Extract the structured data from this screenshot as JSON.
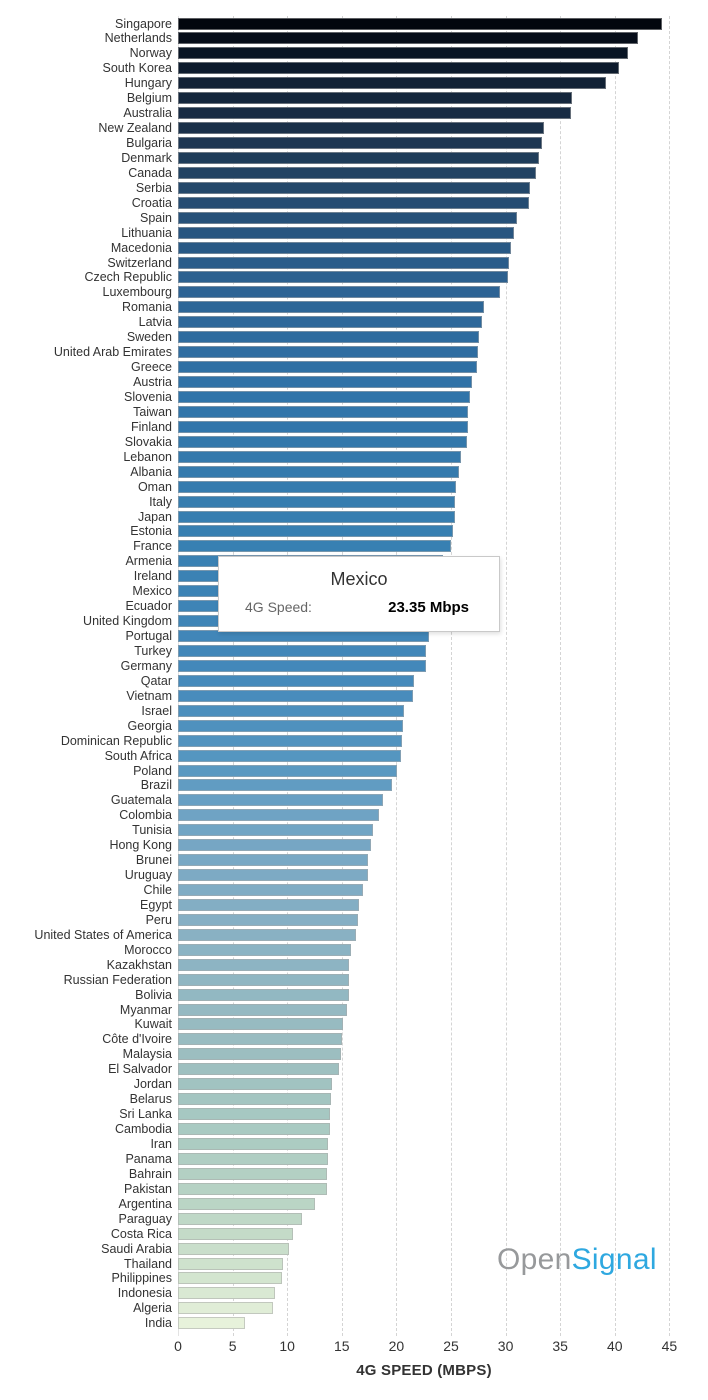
{
  "chart_data": {
    "type": "bar",
    "orientation": "horizontal",
    "title": "",
    "xlabel": "4G SPEED (MBPS)",
    "ylabel": "",
    "xlim": [
      0,
      45
    ],
    "x_ticks": [
      0,
      5,
      10,
      15,
      20,
      25,
      30,
      35,
      40,
      45
    ],
    "grid": "vertical-dashed",
    "categories": [
      "Singapore",
      "Netherlands",
      "Norway",
      "South Korea",
      "Hungary",
      "Belgium",
      "Australia",
      "New Zealand",
      "Bulgaria",
      "Denmark",
      "Canada",
      "Serbia",
      "Croatia",
      "Spain",
      "Lithuania",
      "Macedonia",
      "Switzerland",
      "Czech Republic",
      "Luxembourg",
      "Romania",
      "Latvia",
      "Sweden",
      "United Arab Emirates",
      "Greece",
      "Austria",
      "Slovenia",
      "Taiwan",
      "Finland",
      "Slovakia",
      "Lebanon",
      "Albania",
      "Oman",
      "Italy",
      "Japan",
      "Estonia",
      "France",
      "Armenia",
      "Ireland",
      "Mexico",
      "Ecuador",
      "United Kingdom",
      "Portugal",
      "Turkey",
      "Germany",
      "Qatar",
      "Vietnam",
      "Israel",
      "Georgia",
      "Dominican Republic",
      "South Africa",
      "Poland",
      "Brazil",
      "Guatemala",
      "Colombia",
      "Tunisia",
      "Hong Kong",
      "Brunei",
      "Uruguay",
      "Chile",
      "Egypt",
      "Peru",
      "United States of America",
      "Morocco",
      "Kazakhstan",
      "Russian Federation",
      "Bolivia",
      "Myanmar",
      "Kuwait",
      "Côte d'Ivoire",
      "Malaysia",
      "El Salvador",
      "Jordan",
      "Belarus",
      "Sri Lanka",
      "Cambodia",
      "Iran",
      "Panama",
      "Bahrain",
      "Pakistan",
      "Argentina",
      "Paraguay",
      "Costa Rica",
      "Saudi Arabia",
      "Thailand",
      "Philippines",
      "Indonesia",
      "Algeria",
      "India"
    ],
    "values": [
      44.3,
      42.1,
      41.2,
      40.4,
      39.2,
      36.1,
      36.0,
      33.5,
      33.3,
      33.1,
      32.8,
      32.2,
      32.1,
      31.0,
      30.8,
      30.5,
      30.3,
      30.2,
      29.5,
      28.0,
      27.8,
      27.6,
      27.5,
      27.4,
      26.9,
      26.7,
      26.6,
      26.6,
      26.5,
      25.9,
      25.7,
      25.5,
      25.4,
      25.4,
      25.2,
      25.0,
      24.3,
      23.9,
      23.35,
      23.2,
      23.1,
      23.0,
      22.7,
      22.7,
      21.6,
      21.5,
      20.7,
      20.6,
      20.5,
      20.4,
      20.1,
      19.6,
      18.8,
      18.4,
      17.9,
      17.7,
      17.4,
      17.4,
      16.9,
      16.6,
      16.5,
      16.3,
      15.8,
      15.7,
      15.7,
      15.7,
      15.5,
      15.1,
      15.0,
      14.9,
      14.7,
      14.1,
      14.0,
      13.9,
      13.9,
      13.7,
      13.7,
      13.6,
      13.6,
      12.5,
      11.4,
      10.5,
      10.2,
      9.6,
      9.5,
      8.9,
      8.7,
      6.1
    ],
    "bar_color_gradient_stops": [
      {
        "pos": 0.0,
        "color": "#02060E"
      },
      {
        "pos": 0.025,
        "color": "#0A1626"
      },
      {
        "pos": 0.05,
        "color": "#122338"
      },
      {
        "pos": 0.08,
        "color": "#1A3049"
      },
      {
        "pos": 0.115,
        "color": "#224363"
      },
      {
        "pos": 0.16,
        "color": "#285580"
      },
      {
        "pos": 0.21,
        "color": "#2D6495"
      },
      {
        "pos": 0.28,
        "color": "#3073A8"
      },
      {
        "pos": 0.4,
        "color": "#3880B2"
      },
      {
        "pos": 0.5,
        "color": "#4489BA"
      },
      {
        "pos": 0.565,
        "color": "#5596C0"
      },
      {
        "pos": 0.61,
        "color": "#6FA3C4"
      },
      {
        "pos": 0.68,
        "color": "#84AEC4"
      },
      {
        "pos": 0.75,
        "color": "#93B8C2"
      },
      {
        "pos": 0.8,
        "color": "#9DBFC0"
      },
      {
        "pos": 0.85,
        "color": "#A9CAC2"
      },
      {
        "pos": 0.9,
        "color": "#B7D3C4"
      },
      {
        "pos": 0.93,
        "color": "#C4DBC8"
      },
      {
        "pos": 0.97,
        "color": "#D5E6D0"
      },
      {
        "pos": 1.0,
        "color": "#E7F2DB"
      }
    ]
  },
  "tooltip": {
    "title": "Mexico",
    "label": "4G Speed:",
    "value": "23.35 Mbps"
  },
  "axis": {
    "xlabel": "4G SPEED (MBPS)"
  },
  "logo": {
    "part1": "Open",
    "part2": "Signal",
    "part1_color": "#97999B",
    "part2_color": "#2EA8E0"
  },
  "colors": {
    "text": "#333333",
    "gridline": "#d4d4d4",
    "tooltip_border": "#c9c9c9",
    "background": "#ffffff"
  }
}
